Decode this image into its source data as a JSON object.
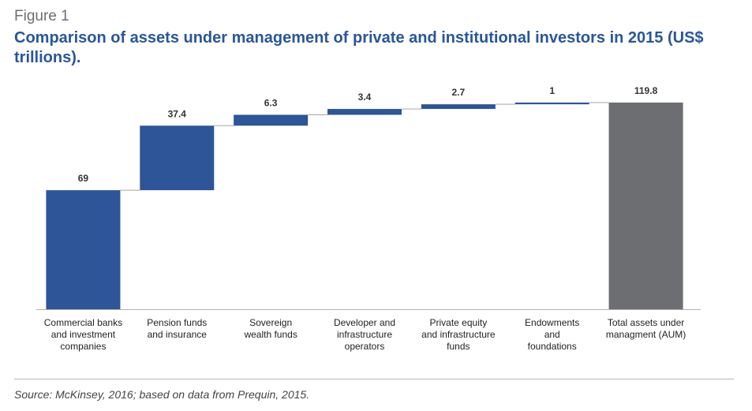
{
  "header": {
    "figure_label": "Figure 1",
    "title": "Comparison of assets under management of private and institutional investors in 2015 (US$ trillions)."
  },
  "source": "Source: McKinsey, 2016; based on data from Prequin, 2015.",
  "colors": {
    "bar": "#2d5597",
    "total_bar": "#6d6e71",
    "title": "#2a5699",
    "connector": "#a6a6a6"
  },
  "chart_data": {
    "type": "bar",
    "subtype": "waterfall",
    "categories": [
      [
        "Commercial banks",
        "and investment",
        "companies"
      ],
      [
        "Pension funds",
        "and insurance"
      ],
      [
        "Sovereign",
        "wealth funds"
      ],
      [
        "Developer and",
        "infrastructure",
        "operators"
      ],
      [
        "Private equity",
        "and infrastructure",
        "funds"
      ],
      [
        "Endowments",
        "and",
        "foundations"
      ],
      [
        "Total assets under",
        "managment (AUM)"
      ]
    ],
    "values": [
      69,
      37.4,
      6.3,
      3.4,
      2.7,
      1,
      119.8
    ],
    "value_labels": [
      "69",
      "37.4",
      "6.3",
      "3.4",
      "2.7",
      "1",
      "119.8"
    ],
    "is_total": [
      false,
      false,
      false,
      false,
      false,
      false,
      true
    ],
    "ylim": [
      0,
      119.8
    ],
    "grid": false,
    "legend": "none"
  }
}
